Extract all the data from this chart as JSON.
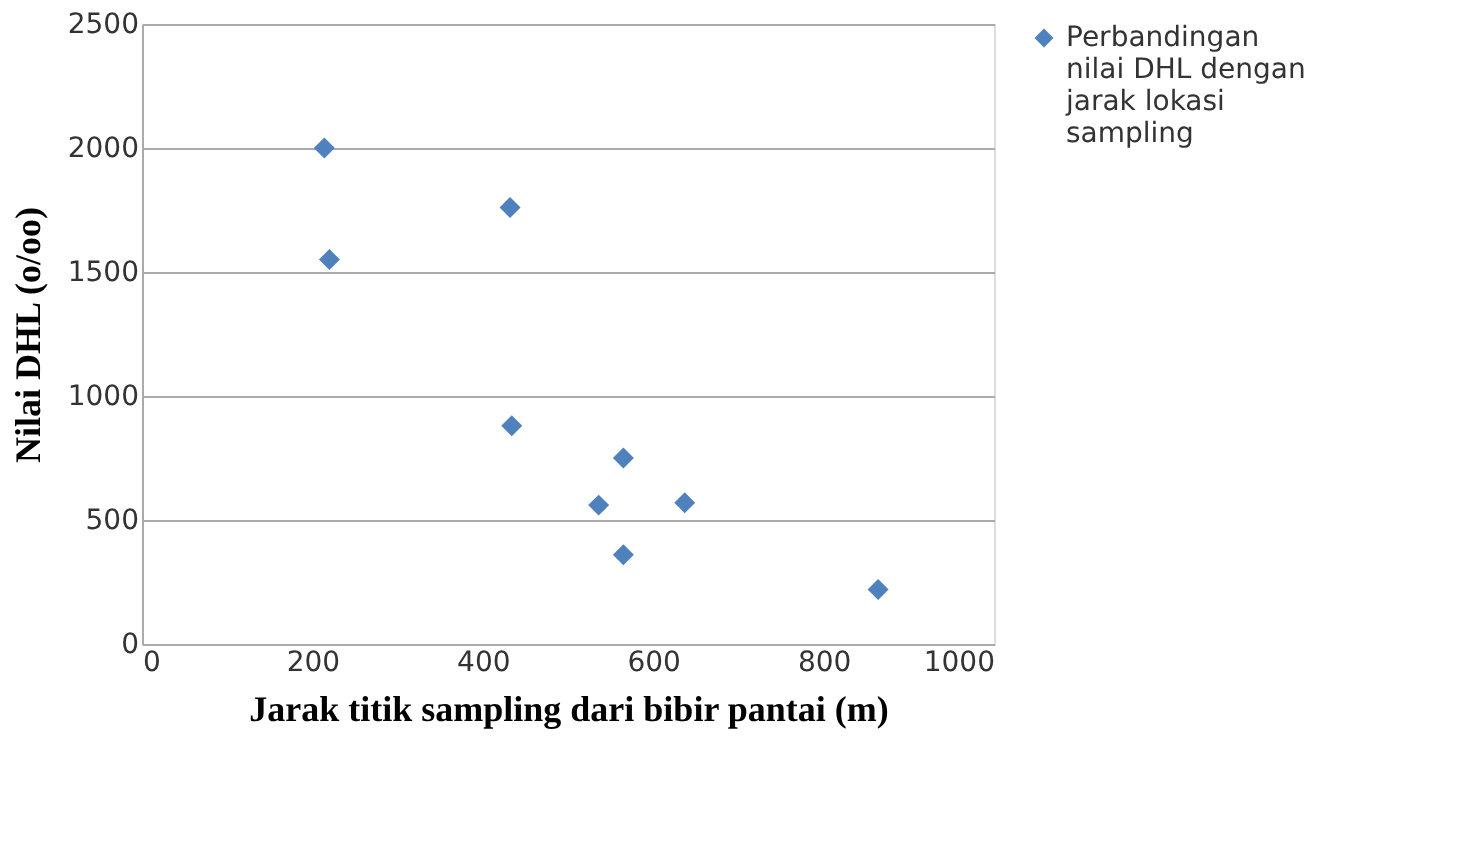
{
  "chart_data": {
    "type": "scatter",
    "xlabel": "Jarak titik sampling dari bibir pantai (m)",
    "ylabel": "Nilai DHL (o/oo)",
    "series": [
      {
        "name": "Perbandingan nilai DHL dengan jarak lokasi sampling",
        "color": "#4f81bd",
        "x": [
          214,
          220,
          432,
          434,
          565,
          536,
          637,
          565,
          864
        ],
        "values": [
          2000,
          1550,
          1760,
          880,
          750,
          560,
          570,
          360,
          220
        ]
      }
    ],
    "xlim": [
      0,
      1000
    ],
    "xticks": [
      0,
      200,
      400,
      600,
      800,
      1000
    ],
    "ylim": [
      0,
      2500
    ],
    "yticks": [
      0,
      500,
      1000,
      1500,
      2000,
      2500
    ],
    "grid": "y",
    "legend": "right",
    "marker": "diamond"
  }
}
